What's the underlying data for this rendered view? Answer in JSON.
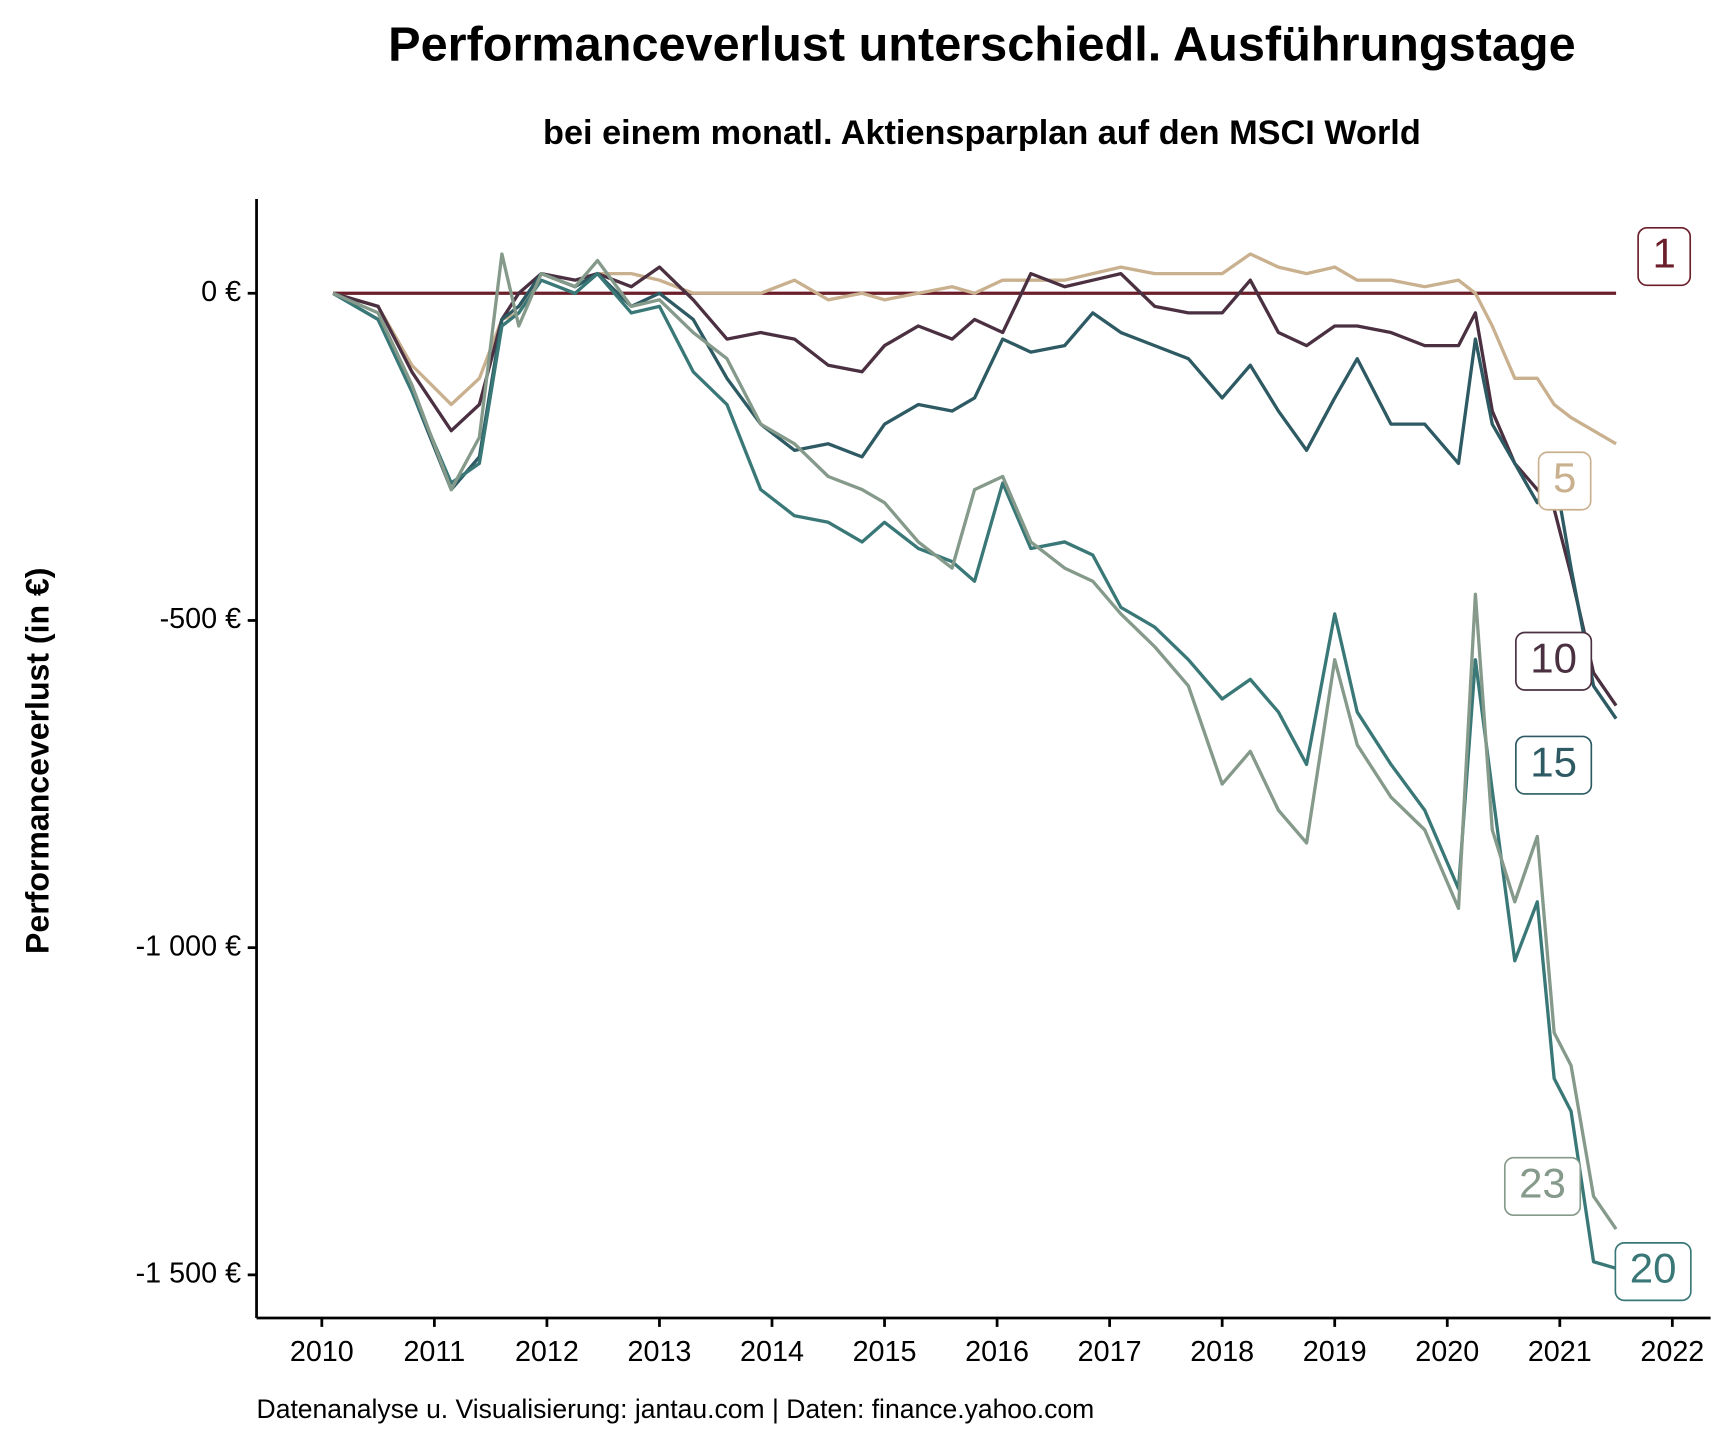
{
  "chart_data": {
    "type": "line",
    "title": "Performanceverlust unterschiedl. Ausführungstage",
    "subtitle": "bei einem monatl. Aktiensparplan auf den MSCI World",
    "y_label": "Performanceverlust (in €)",
    "caption": "Datenanalyse u. Visualisierung: jantau.com | Daten: finance.yahoo.com",
    "x": [
      2010.1,
      2010.5,
      2010.8,
      2011.15,
      2011.4,
      2011.6,
      2011.75,
      2011.95,
      2012.25,
      2012.45,
      2012.75,
      2013.0,
      2013.3,
      2013.6,
      2013.9,
      2014.2,
      2014.5,
      2014.8,
      2015.0,
      2015.3,
      2015.6,
      2015.8,
      2016.05,
      2016.3,
      2016.6,
      2016.85,
      2017.1,
      2017.4,
      2017.7,
      2018.0,
      2018.25,
      2018.5,
      2018.75,
      2019.0,
      2019.2,
      2019.5,
      2019.8,
      2020.1,
      2020.25,
      2020.4,
      2020.6,
      2020.8,
      2020.95,
      2021.1,
      2021.3,
      2021.5
    ],
    "series": [
      {
        "name": "1",
        "color": "#6b1f2a",
        "values": [
          0,
          0,
          0,
          0,
          0,
          0,
          0,
          0,
          0,
          0,
          0,
          0,
          0,
          0,
          0,
          0,
          0,
          0,
          0,
          0,
          0,
          0,
          0,
          0,
          0,
          0,
          0,
          0,
          0,
          0,
          0,
          0,
          0,
          0,
          0,
          0,
          0,
          0,
          0,
          0,
          0,
          0,
          0,
          0,
          0,
          0
        ]
      },
      {
        "name": "5",
        "color": "#c9b08f",
        "values": [
          0,
          -20,
          -110,
          -170,
          -130,
          -40,
          -30,
          30,
          10,
          30,
          30,
          20,
          0,
          0,
          0,
          20,
          -10,
          0,
          -10,
          0,
          10,
          0,
          20,
          20,
          20,
          30,
          40,
          30,
          30,
          30,
          60,
          40,
          30,
          40,
          20,
          20,
          10,
          20,
          0,
          -50,
          -130,
          -130,
          -170,
          -190,
          -210,
          -230
        ]
      },
      {
        "name": "10",
        "color": "#4a3040",
        "values": [
          0,
          -20,
          -120,
          -210,
          -170,
          -40,
          0,
          30,
          20,
          30,
          10,
          40,
          -10,
          -70,
          -60,
          -70,
          -110,
          -120,
          -80,
          -50,
          -70,
          -40,
          -60,
          30,
          10,
          20,
          30,
          -20,
          -30,
          -30,
          20,
          -60,
          -80,
          -50,
          -50,
          -60,
          -80,
          -80,
          -30,
          -180,
          -260,
          -300,
          -330,
          -430,
          -580,
          -630
        ]
      },
      {
        "name": "15",
        "color": "#2d5a63",
        "values": [
          0,
          -40,
          -150,
          -300,
          -250,
          -40,
          -20,
          30,
          10,
          30,
          -20,
          0,
          -40,
          -130,
          -200,
          -240,
          -230,
          -250,
          -200,
          -170,
          -180,
          -160,
          -70,
          -90,
          -80,
          -30,
          -60,
          -80,
          -100,
          -160,
          -110,
          -180,
          -240,
          -160,
          -100,
          -200,
          -200,
          -260,
          -70,
          -200,
          -260,
          -320,
          -270,
          -420,
          -600,
          -650
        ]
      },
      {
        "name": "20",
        "color": "#3a7878",
        "values": [
          0,
          -40,
          -150,
          -290,
          -260,
          -50,
          -30,
          20,
          0,
          30,
          -30,
          -20,
          -120,
          -170,
          -300,
          -340,
          -350,
          -380,
          -350,
          -390,
          -410,
          -440,
          -290,
          -390,
          -380,
          -400,
          -480,
          -510,
          -560,
          -620,
          -590,
          -640,
          -720,
          -490,
          -640,
          -720,
          -790,
          -910,
          -560,
          -760,
          -1020,
          -930,
          -1200,
          -1250,
          -1480,
          -1490
        ]
      },
      {
        "name": "23",
        "color": "#859a8a",
        "values": [
          0,
          -30,
          -140,
          -300,
          -220,
          60,
          -50,
          30,
          10,
          50,
          -20,
          -10,
          -60,
          -100,
          -200,
          -230,
          -280,
          -300,
          -320,
          -380,
          -420,
          -300,
          -280,
          -380,
          -420,
          -440,
          -490,
          -540,
          -600,
          -750,
          -700,
          -790,
          -840,
          -560,
          -690,
          -770,
          -820,
          -940,
          -460,
          -820,
          -930,
          -830,
          -1130,
          -1180,
          -1380,
          -1430
        ]
      }
    ],
    "xlim": [
      2009.42,
      2022.34
    ],
    "ylim": [
      -1566,
      144
    ],
    "xticks": [
      2010,
      2011,
      2012,
      2013,
      2014,
      2015,
      2016,
      2017,
      2018,
      2019,
      2020,
      2021,
      2022
    ],
    "yticks": [
      {
        "value": 0,
        "label": "0 €"
      },
      {
        "value": -500,
        "label": "-500 €"
      },
      {
        "value": -1000,
        "label": "-1 000 €"
      },
      {
        "value": -1500,
        "label": "-1 500 €"
      }
    ]
  }
}
